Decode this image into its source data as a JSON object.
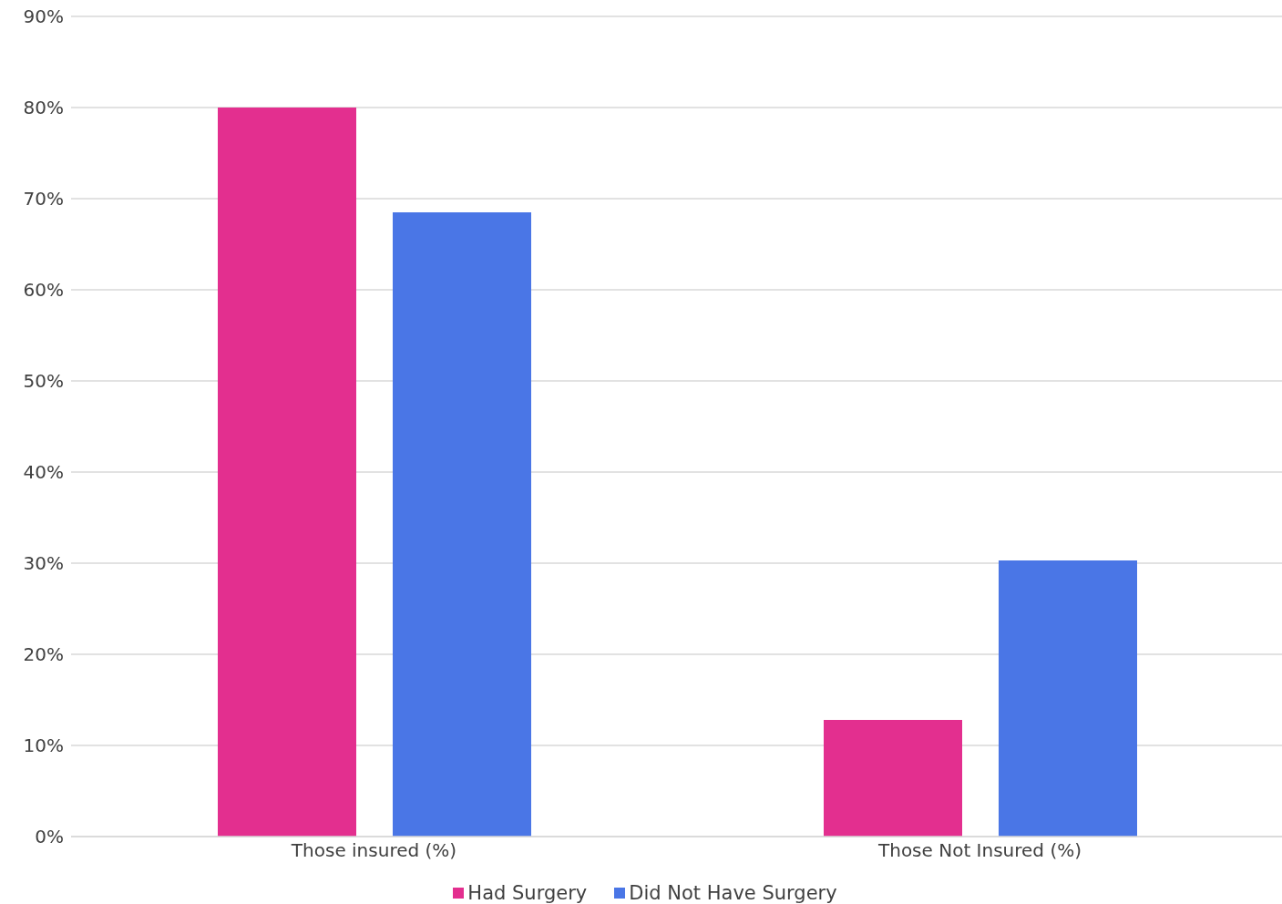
{
  "chart_data": {
    "type": "bar",
    "categories": [
      "Those insured  (%)",
      "Those Not Insured (%)"
    ],
    "series": [
      {
        "name": "Had Surgery",
        "color": "#e32f8f",
        "values": [
          80,
          12.8
        ]
      },
      {
        "name": "Did Not Have Surgery",
        "color": "#4a76e6",
        "values": [
          68.5,
          30.3
        ]
      }
    ],
    "ylim": [
      0,
      90
    ],
    "yticks": [
      {
        "value": 0,
        "label": "0%"
      },
      {
        "value": 10,
        "label": "10%"
      },
      {
        "value": 20,
        "label": "20%"
      },
      {
        "value": 30,
        "label": "30%"
      },
      {
        "value": 40,
        "label": "40%"
      },
      {
        "value": 50,
        "label": "50%"
      },
      {
        "value": 60,
        "label": "60%"
      },
      {
        "value": 70,
        "label": "70%"
      },
      {
        "value": 80,
        "label": "80%"
      },
      {
        "value": 90,
        "label": "90%"
      }
    ],
    "grid": "y",
    "legend": "bottom",
    "marker": "square"
  }
}
